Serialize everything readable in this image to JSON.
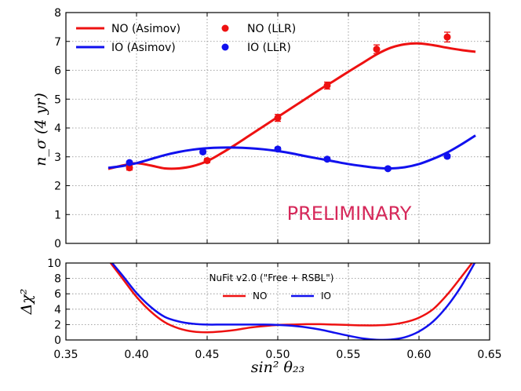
{
  "chart_data": [
    {
      "type": "scatter",
      "panel": "top",
      "ylabel": "n_σ (4 yr)",
      "ylim": [
        0,
        8
      ],
      "xlim": [
        0.35,
        0.65
      ],
      "yticks": [
        "0",
        "1",
        "2",
        "3",
        "4",
        "5",
        "6",
        "7",
        "8"
      ],
      "grid": true,
      "watermark": "PRELIMINARY",
      "legend": [
        {
          "label": "NO (Asimov)",
          "color": "#ee1111",
          "kind": "line"
        },
        {
          "label": "IO (Asimov)",
          "color": "#1111ee",
          "kind": "line"
        },
        {
          "label": "NO (LLR)",
          "color": "#ee1111",
          "kind": "marker"
        },
        {
          "label": "IO (LLR)",
          "color": "#1111ee",
          "kind": "marker"
        }
      ],
      "series": [
        {
          "name": "NO (Asimov)",
          "color": "#ee1111",
          "x": [
            0.38,
            0.39,
            0.4,
            0.41,
            0.42,
            0.43,
            0.44,
            0.45,
            0.46,
            0.47,
            0.48,
            0.49,
            0.5,
            0.51,
            0.52,
            0.53,
            0.54,
            0.55,
            0.56,
            0.57,
            0.58,
            0.59,
            0.6,
            0.61,
            0.62,
            0.63,
            0.64
          ],
          "y": [
            2.58,
            2.7,
            2.78,
            2.7,
            2.6,
            2.6,
            2.68,
            2.85,
            3.12,
            3.42,
            3.74,
            4.06,
            4.38,
            4.7,
            5.02,
            5.34,
            5.64,
            5.95,
            6.25,
            6.55,
            6.78,
            6.9,
            6.93,
            6.87,
            6.78,
            6.7,
            6.64
          ]
        },
        {
          "name": "IO (Asimov)",
          "color": "#1111ee",
          "x": [
            0.38,
            0.39,
            0.4,
            0.41,
            0.42,
            0.43,
            0.44,
            0.45,
            0.46,
            0.47,
            0.48,
            0.49,
            0.5,
            0.51,
            0.52,
            0.53,
            0.54,
            0.55,
            0.56,
            0.57,
            0.58,
            0.59,
            0.6,
            0.61,
            0.62,
            0.63,
            0.64
          ],
          "y": [
            2.62,
            2.68,
            2.78,
            2.92,
            3.06,
            3.17,
            3.25,
            3.3,
            3.32,
            3.32,
            3.3,
            3.26,
            3.2,
            3.12,
            3.02,
            2.93,
            2.84,
            2.75,
            2.68,
            2.62,
            2.6,
            2.64,
            2.75,
            2.93,
            3.15,
            3.43,
            3.74
          ]
        },
        {
          "name": "NO (LLR)",
          "color": "#ee1111",
          "x": [
            0.395,
            0.45,
            0.5,
            0.535,
            0.57,
            0.62
          ],
          "y": [
            2.62,
            2.87,
            4.35,
            5.47,
            6.73,
            7.15
          ],
          "err": [
            0.08,
            0.07,
            0.12,
            0.12,
            0.15,
            0.17
          ]
        },
        {
          "name": "IO (LLR)",
          "color": "#1111ee",
          "x": [
            0.395,
            0.447,
            0.5,
            0.535,
            0.578,
            0.62
          ],
          "y": [
            2.8,
            3.17,
            3.27,
            2.92,
            2.59,
            3.02
          ],
          "err": [
            0.05,
            0.06,
            0.06,
            0.05,
            0.05,
            0.06
          ]
        }
      ]
    },
    {
      "type": "line",
      "panel": "bottom",
      "title": "NuFit v2.0 (\"Free + RSBL\")",
      "xlabel": "sin² θ₂₃",
      "ylabel": "Δχ²",
      "ylim": [
        0,
        10
      ],
      "xlim": [
        0.35,
        0.65
      ],
      "yticks": [
        "0",
        "2",
        "4",
        "6",
        "8",
        "10"
      ],
      "xticks": [
        "0.35",
        "0.40",
        "0.45",
        "0.50",
        "0.55",
        "0.60",
        "0.65"
      ],
      "grid": true,
      "legend": [
        {
          "label": "NO",
          "color": "#ee1111"
        },
        {
          "label": "IO",
          "color": "#1111ee"
        }
      ],
      "series": [
        {
          "name": "NO",
          "color": "#ee1111",
          "x": [
            0.38,
            0.39,
            0.4,
            0.41,
            0.42,
            0.43,
            0.44,
            0.45,
            0.46,
            0.47,
            0.48,
            0.49,
            0.5,
            0.51,
            0.52,
            0.53,
            0.54,
            0.55,
            0.56,
            0.57,
            0.58,
            0.59,
            0.6,
            0.61,
            0.62,
            0.63,
            0.64
          ],
          "y": [
            10.4,
            8.0,
            5.6,
            3.7,
            2.3,
            1.5,
            1.1,
            1.0,
            1.1,
            1.3,
            1.6,
            1.8,
            1.95,
            2.0,
            2.05,
            2.05,
            2.0,
            1.95,
            1.9,
            1.9,
            2.0,
            2.3,
            2.9,
            4.0,
            5.9,
            8.2,
            10.6
          ]
        },
        {
          "name": "IO",
          "color": "#1111ee",
          "x": [
            0.38,
            0.39,
            0.4,
            0.41,
            0.42,
            0.43,
            0.44,
            0.45,
            0.46,
            0.47,
            0.48,
            0.49,
            0.5,
            0.51,
            0.52,
            0.53,
            0.54,
            0.55,
            0.56,
            0.57,
            0.58,
            0.59,
            0.6,
            0.61,
            0.62,
            0.63,
            0.64
          ],
          "y": [
            10.6,
            8.4,
            6.1,
            4.3,
            3.0,
            2.4,
            2.1,
            2.0,
            2.0,
            2.0,
            2.0,
            2.0,
            1.95,
            1.85,
            1.65,
            1.35,
            0.95,
            0.55,
            0.2,
            0.03,
            0.05,
            0.35,
            1.1,
            2.4,
            4.4,
            7.0,
            10.2
          ]
        }
      ]
    }
  ]
}
